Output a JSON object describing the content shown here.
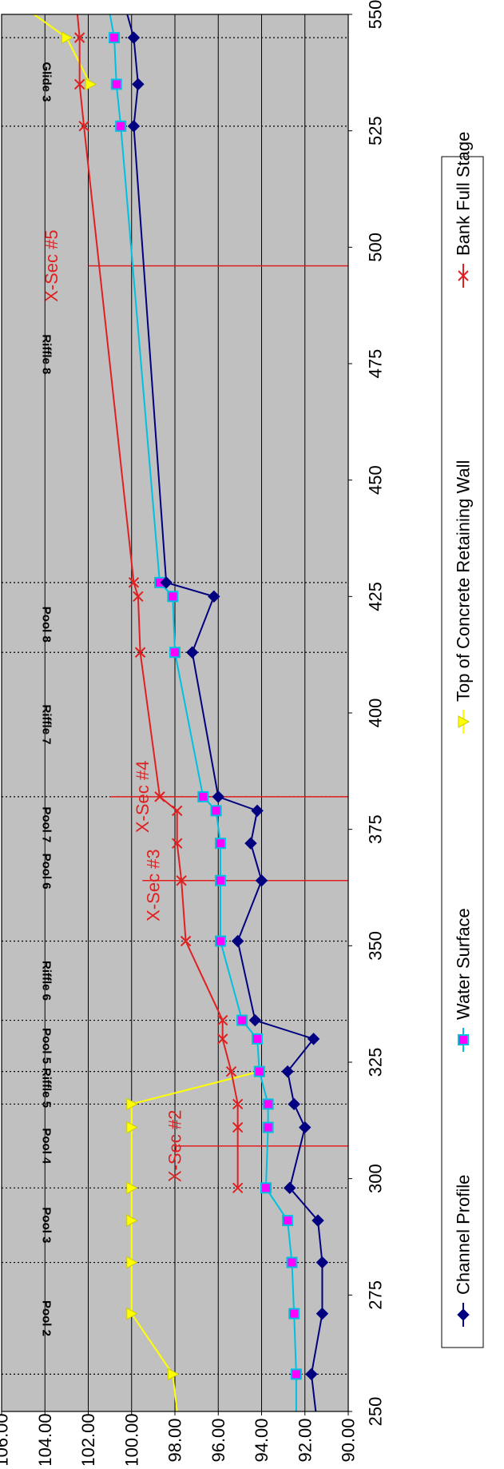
{
  "chart_data": {
    "type": "line",
    "orientation": "rotated-90-clockwise",
    "title": "",
    "xlabel": "",
    "ylabel": "",
    "xlim": [
      250,
      550
    ],
    "ylim": [
      90,
      106
    ],
    "x_ticks": [
      "250",
      "275",
      "300",
      "325",
      "350",
      "375",
      "400",
      "425",
      "450",
      "475",
      "500",
      "525",
      "550"
    ],
    "y_ticks": [
      "106.00",
      "104.00",
      "102.00",
      "100.00",
      "98.00",
      "96.00",
      "94.00",
      "92.00",
      "90.00"
    ],
    "grid": true,
    "legend_position": "right",
    "series": [
      {
        "name": "Channel Profile",
        "color": "#000080",
        "marker": "diamond",
        "x": [
          250,
          258,
          271,
          282,
          291,
          298,
          311,
          316,
          323,
          330,
          334,
          351,
          364,
          372,
          379,
          382,
          413,
          425,
          428,
          526,
          535,
          545,
          550
        ],
        "y": [
          91.5,
          91.7,
          91.2,
          91.2,
          91.4,
          92.7,
          92.0,
          92.5,
          92.8,
          91.6,
          94.3,
          95.1,
          94.0,
          94.5,
          94.2,
          96.0,
          97.2,
          96.2,
          98.4,
          99.9,
          99.7,
          99.9,
          100.2
        ]
      },
      {
        "name": "Water Surface",
        "color": "#00c0e0",
        "marker": "square",
        "x": [
          250,
          258,
          271,
          282,
          291,
          298,
          311,
          316,
          323,
          330,
          334,
          351,
          364,
          372,
          379,
          382,
          413,
          425,
          428,
          526,
          535,
          545,
          550
        ],
        "y": [
          92.4,
          92.4,
          92.5,
          92.6,
          92.8,
          93.8,
          93.7,
          93.7,
          94.1,
          94.2,
          94.9,
          95.9,
          95.9,
          95.9,
          96.1,
          96.7,
          98.0,
          98.1,
          98.7,
          100.5,
          100.7,
          100.8,
          101.0
        ]
      },
      {
        "name": "Top of Concrete Retaining Wall",
        "color": "#ffff00",
        "marker": "triangle",
        "x": [
          250,
          258,
          271,
          282,
          291,
          298,
          311,
          316,
          323
        ],
        "y": [
          97.9,
          98.1,
          100.0,
          100.0,
          100.0,
          100.0,
          100.0,
          100.0,
          94.1
        ],
        "x_extra": [
          535,
          545,
          550
        ],
        "y_extra": [
          101.9,
          103.0,
          104.5
        ]
      },
      {
        "name": "Bank Full Stage",
        "color": "#e02020",
        "marker": "x",
        "x": [
          298,
          311,
          316,
          323,
          330,
          334,
          351,
          364,
          372,
          379,
          382,
          413,
          425,
          428,
          526,
          535,
          545,
          550
        ],
        "y": [
          95.1,
          95.1,
          95.1,
          95.4,
          95.8,
          95.8,
          97.5,
          97.7,
          97.9,
          97.9,
          98.7,
          99.6,
          99.7,
          99.9,
          102.2,
          102.4,
          102.4,
          102.5
        ]
      }
    ],
    "segment_boundaries": [
      258,
      282,
      298,
      316,
      323,
      334,
      351,
      382,
      413,
      428,
      526,
      545
    ],
    "segment_labels": [
      {
        "text": "Pool 2",
        "x": 270
      },
      {
        "text": "Pool 3",
        "x": 290
      },
      {
        "text": "Pool 4",
        "x": 307
      },
      {
        "text": "Riffle 5",
        "x": 319.5
      },
      {
        "text": "Pool 5",
        "x": 328.5
      },
      {
        "text": "Riffle 6",
        "x": 342.5
      },
      {
        "text": "Pool 6",
        "x": 366
      },
      {
        "text": "Pool 7",
        "x": 376
      },
      {
        "text": "Riffle 7",
        "x": 397.5
      },
      {
        "text": "Pool 8",
        "x": 419
      },
      {
        "text": "Riffle 8",
        "x": 477
      },
      {
        "text": "Glide 3",
        "x": 535.5
      }
    ],
    "cross_sections": [
      {
        "label": "X-Sec #2",
        "x": 307,
        "line_top": 98.0,
        "label_y": 98.0
      },
      {
        "label": "X-Sec #3",
        "x": 364,
        "line_top": 99.5,
        "label_y": 99.0
      },
      {
        "label": "X-Sec #4",
        "x": 382,
        "line_top": 101.0,
        "label_y": 99.5
      },
      {
        "label": "X-Sec #5",
        "x": 496,
        "line_top": 102.0,
        "label_y": 103.7
      }
    ]
  }
}
